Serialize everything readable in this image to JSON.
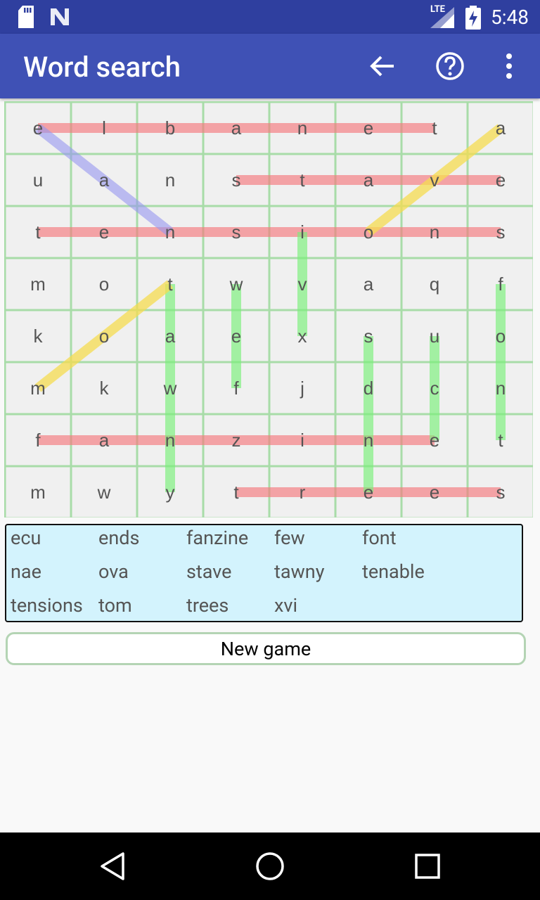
{
  "status": {
    "time": "5:48",
    "network": "LTE"
  },
  "appbar": {
    "title": "Word search"
  },
  "grid": {
    "rows": [
      [
        "e",
        "l",
        "b",
        "a",
        "n",
        "e",
        "t",
        "a"
      ],
      [
        "u",
        "a",
        "n",
        "s",
        "t",
        "a",
        "v",
        "e"
      ],
      [
        "t",
        "e",
        "n",
        "s",
        "i",
        "o",
        "n",
        "s"
      ],
      [
        "m",
        "o",
        "t",
        "w",
        "v",
        "a",
        "q",
        "f"
      ],
      [
        "k",
        "o",
        "a",
        "e",
        "x",
        "s",
        "u",
        "o"
      ],
      [
        "m",
        "k",
        "w",
        "f",
        "j",
        "d",
        "c",
        "n"
      ],
      [
        "f",
        "a",
        "n",
        "z",
        "i",
        "n",
        "e",
        "t"
      ],
      [
        "m",
        "w",
        "y",
        "t",
        "r",
        "e",
        "e",
        "s"
      ]
    ]
  },
  "words": [
    "ecu",
    "ends",
    "fanzine",
    "few",
    "font",
    "nae",
    "ova",
    "stave",
    "tawny",
    "tenable",
    "tensions",
    "tom",
    "trees",
    "xvi"
  ],
  "new_game_label": "New game"
}
